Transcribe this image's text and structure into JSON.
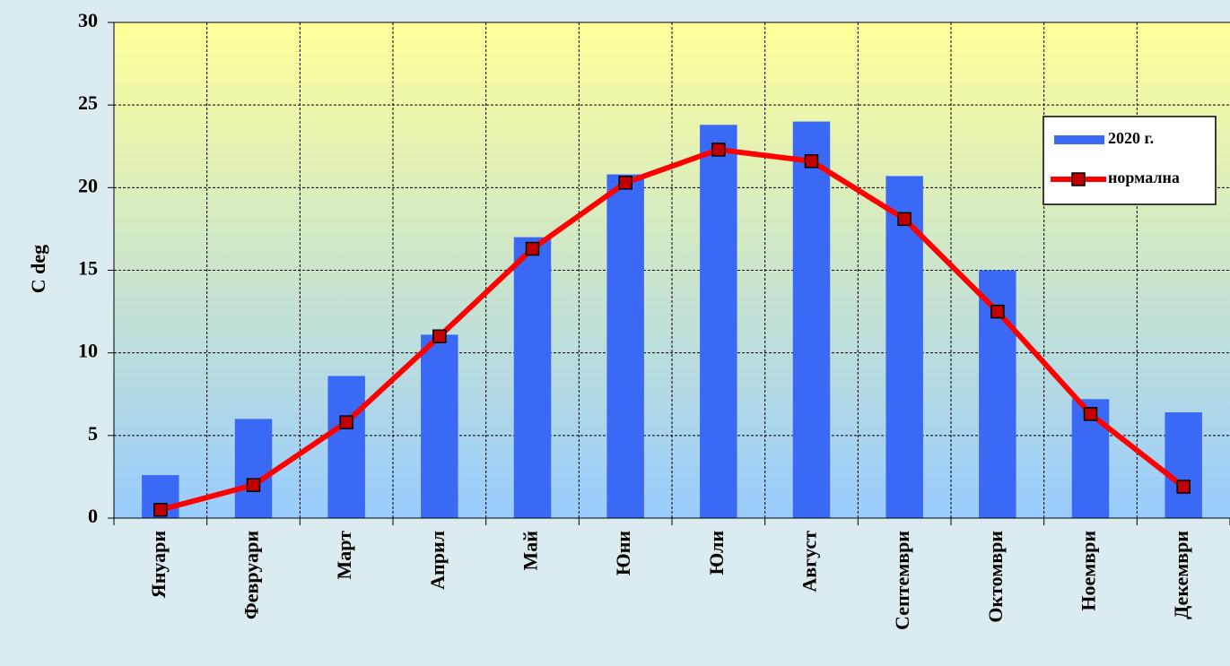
{
  "chart_data": {
    "type": "bar_line",
    "y_label": "C deg",
    "categories": [
      "Януари",
      "Февруари",
      "Март",
      "Април",
      "Май",
      "Юни",
      "Юли",
      "Август",
      "Септември",
      "Октомври",
      "Ноември",
      "Декември"
    ],
    "series": [
      {
        "name": "2020 г.",
        "type": "bar",
        "color": "#3a6af5",
        "values": [
          2.6,
          6.0,
          8.6,
          11.1,
          17.0,
          20.8,
          23.8,
          24.0,
          20.7,
          15.0,
          7.2,
          6.4
        ]
      },
      {
        "name": "нормална",
        "type": "line",
        "color": "#ff0000",
        "marker_color": "#c00000",
        "values": [
          0.5,
          2.0,
          5.8,
          11.0,
          16.3,
          20.3,
          22.3,
          21.6,
          18.1,
          12.5,
          6.3,
          1.9
        ]
      }
    ],
    "ylim": [
      0,
      30
    ],
    "yticks": [
      0,
      5,
      10,
      15,
      20,
      25,
      30
    ],
    "grid": true,
    "legend": "upper right"
  }
}
